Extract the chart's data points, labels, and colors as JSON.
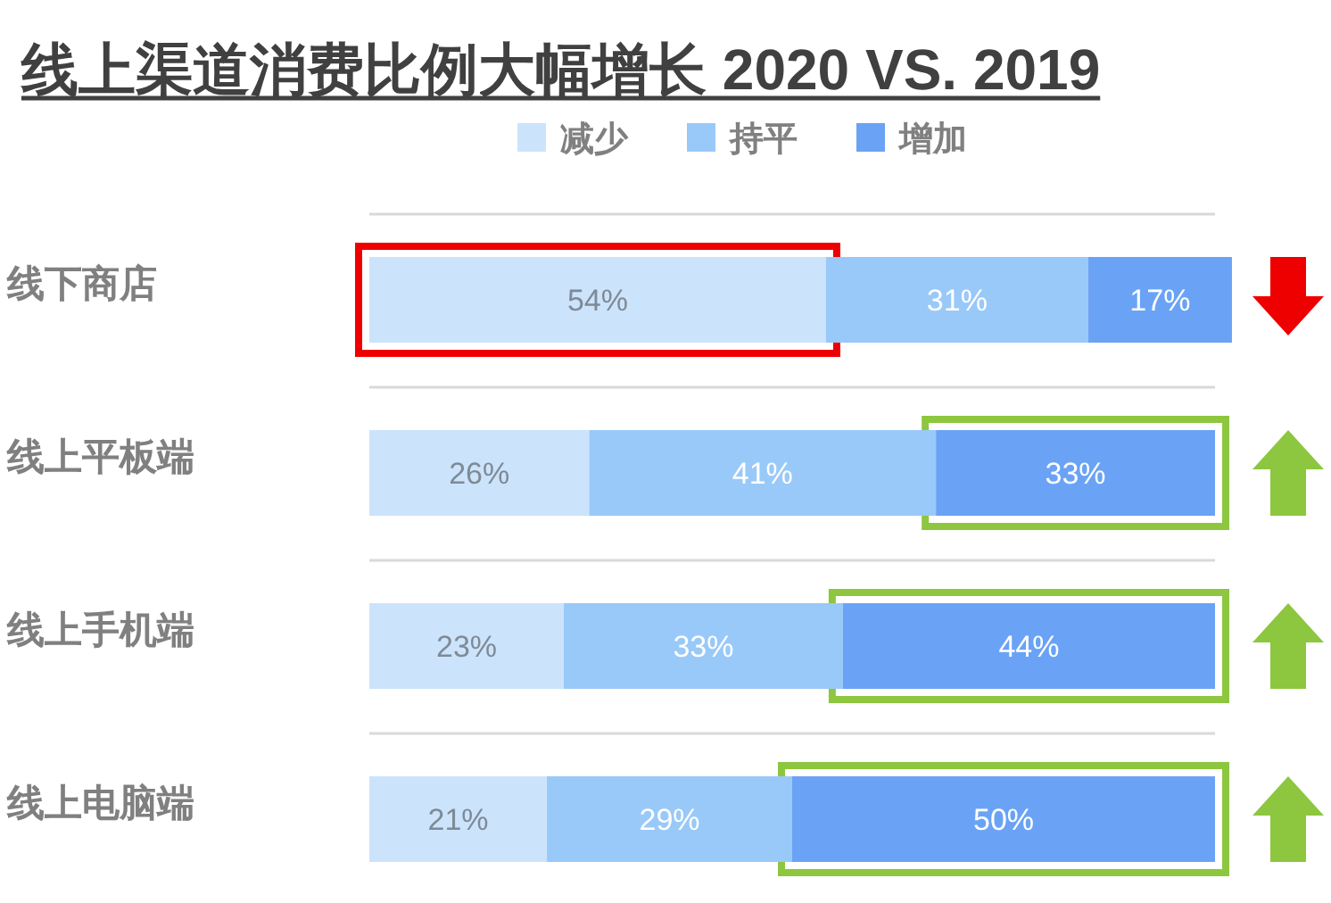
{
  "chart_data": {
    "type": "bar",
    "orientation": "horizontal",
    "stacked": true,
    "title": "线上渠道消费比例大幅增长 2020 VS. 2019",
    "categories": [
      "线下商店",
      "线上平板端",
      "线上手机端",
      "线上电脑端"
    ],
    "series": [
      {
        "name": "减少",
        "color": "#cce4fb",
        "values": [
          54,
          26,
          23,
          21
        ],
        "value_labels": [
          "54%",
          "26%",
          "23%",
          "21%"
        ]
      },
      {
        "name": "持平",
        "color": "#99c9f8",
        "values": [
          31,
          41,
          33,
          29
        ],
        "value_labels": [
          "31%",
          "41%",
          "33%",
          "29%"
        ]
      },
      {
        "name": "增加",
        "color": "#6aa3f5",
        "values": [
          17,
          33,
          44,
          50
        ],
        "value_labels": [
          "17%",
          "33%",
          "44%",
          "50%"
        ]
      }
    ],
    "legend": "top",
    "grid": "y"
  }
}
